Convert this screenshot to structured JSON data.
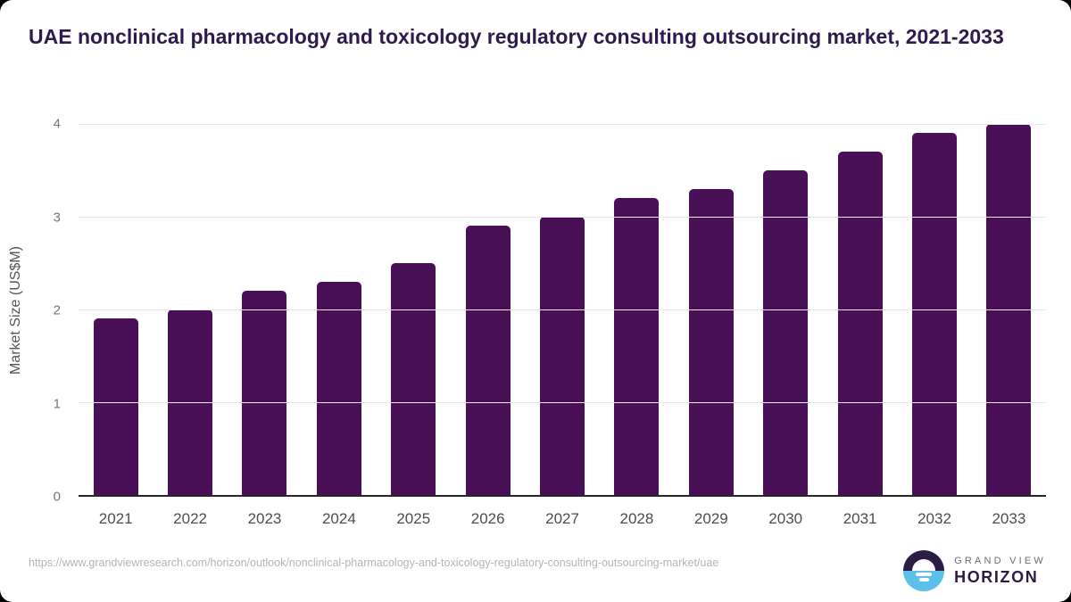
{
  "chart_data": {
    "type": "bar",
    "title": "UAE nonclinical pharmacology and toxicology regulatory consulting outsourcing market, 2021-2033",
    "categories": [
      "2021",
      "2022",
      "2023",
      "2024",
      "2025",
      "2026",
      "2027",
      "2028",
      "2029",
      "2030",
      "2031",
      "2032",
      "2033"
    ],
    "values": [
      1.9,
      2.0,
      2.2,
      2.3,
      2.5,
      2.9,
      3.0,
      3.2,
      3.3,
      3.5,
      3.7,
      3.9,
      4.0
    ],
    "xlabel": "",
    "ylabel": "Market Size (US$M)",
    "ylim": [
      0,
      4
    ],
    "yticks": [
      0,
      1,
      2,
      3,
      4
    ],
    "grid": true,
    "legend_position": "none",
    "bar_color": "#491058",
    "gridline_color": "#e7e7e7",
    "axis_line_color": "#262626",
    "title_color": "#2f1a4e"
  },
  "footer": {
    "source_url": "https://www.grandviewresearch.com/horizon/outlook/nonclinical-pharmacology-and-toxicology-regulatory-consulting-outsourcing-market/uae",
    "logo": {
      "line1": "GRAND VIEW",
      "line2": "HORIZON",
      "icon_top_color": "#2b1c46",
      "icon_bottom_color": "#5bc1e9"
    }
  }
}
